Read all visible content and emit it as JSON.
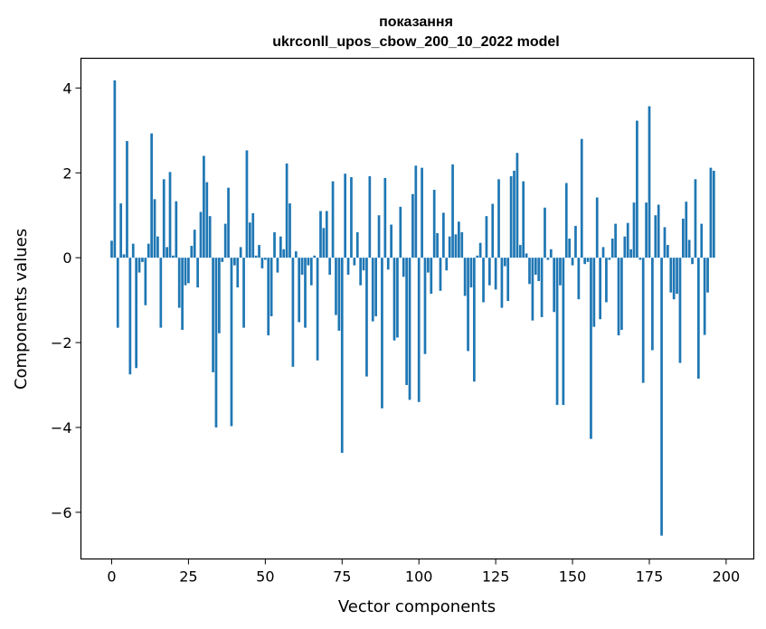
{
  "chart_data": {
    "type": "bar",
    "title_line1": "показання",
    "title_line2": "ukrconll_upos_cbow_200_10_2022 model",
    "xlabel": "Vector components",
    "ylabel": "Components values",
    "xlim": [
      -10,
      209
    ],
    "ylim": [
      -7.1,
      4.7
    ],
    "xticks": [
      0,
      25,
      50,
      75,
      100,
      125,
      150,
      175,
      200
    ],
    "xtick_labels": [
      "0",
      "25",
      "50",
      "75",
      "100",
      "125",
      "150",
      "175",
      "200"
    ],
    "yticks": [
      4,
      2,
      0,
      -2,
      -4,
      -6
    ],
    "ytick_labels": [
      "4",
      "2",
      "0",
      "−2",
      "−4",
      "−6"
    ],
    "bar_color": "#1f77b4",
    "grid": false,
    "values": [
      0.4,
      4.18,
      -1.65,
      1.28,
      0.08,
      2.75,
      -2.75,
      0.33,
      -2.6,
      -0.35,
      -0.1,
      -1.12,
      0.33,
      2.93,
      1.38,
      0.5,
      -1.65,
      1.85,
      0.25,
      2.02,
      0.05,
      1.33,
      -1.18,
      -1.7,
      -0.65,
      -0.6,
      0.28,
      0.66,
      -0.7,
      1.08,
      2.4,
      1.78,
      0.98,
      -2.7,
      -4.0,
      -1.78,
      -0.1,
      0.8,
      1.65,
      -3.97,
      -0.18,
      -0.7,
      0.25,
      -1.65,
      2.53,
      0.83,
      1.05,
      0.05,
      0.3,
      -0.25,
      -0.05,
      -1.83,
      -1.38,
      0.6,
      -0.35,
      0.5,
      0.2,
      2.22,
      1.28,
      -2.57,
      0.15,
      -1.52,
      -0.4,
      -1.65,
      -0.18,
      -0.65,
      0.05,
      -2.42,
      1.1,
      0.7,
      1.1,
      -0.4,
      1.8,
      -1.35,
      -1.72,
      -4.6,
      1.98,
      -0.4,
      1.9,
      -0.18,
      0.6,
      -0.65,
      -0.3,
      -2.8,
      1.92,
      -1.5,
      -1.38,
      1.0,
      -3.55,
      1.88,
      -0.28,
      0.78,
      -1.95,
      -1.88,
      1.2,
      -0.45,
      -3.0,
      -3.35,
      1.5,
      2.17,
      -3.4,
      2.12,
      -2.27,
      -0.35,
      -0.85,
      1.6,
      0.58,
      -0.78,
      1.06,
      -0.3,
      0.5,
      2.2,
      0.55,
      0.85,
      0.6,
      -0.9,
      -2.2,
      -0.7,
      -2.92,
      0.05,
      0.35,
      -1.05,
      0.98,
      -0.65,
      1.27,
      -0.75,
      1.85,
      -1.18,
      -0.2,
      -1.02,
      1.92,
      2.05,
      2.47,
      0.3,
      1.8,
      0.1,
      -0.62,
      -1.48,
      -0.4,
      -0.55,
      -1.4,
      1.18,
      -0.05,
      0.2,
      -1.28,
      -3.47,
      -0.65,
      -3.47,
      1.76,
      0.45,
      -0.18,
      0.75,
      -0.98,
      2.8,
      -0.15,
      -0.1,
      -4.27,
      -1.63,
      1.42,
      -1.45,
      0.25,
      -1.05,
      -0.05,
      0.45,
      0.8,
      -1.83,
      -1.7,
      0.5,
      0.82,
      0.2,
      1.3,
      3.23,
      -0.05,
      -2.95,
      1.3,
      3.57,
      -2.18,
      1.0,
      1.25,
      -6.55,
      0.72,
      0.3,
      -0.82,
      -0.98,
      -0.85,
      -2.48,
      0.92,
      1.32,
      0.42,
      -0.15,
      1.85,
      -2.85,
      0.8,
      -1.82,
      -0.82,
      2.12,
      2.05
    ]
  }
}
